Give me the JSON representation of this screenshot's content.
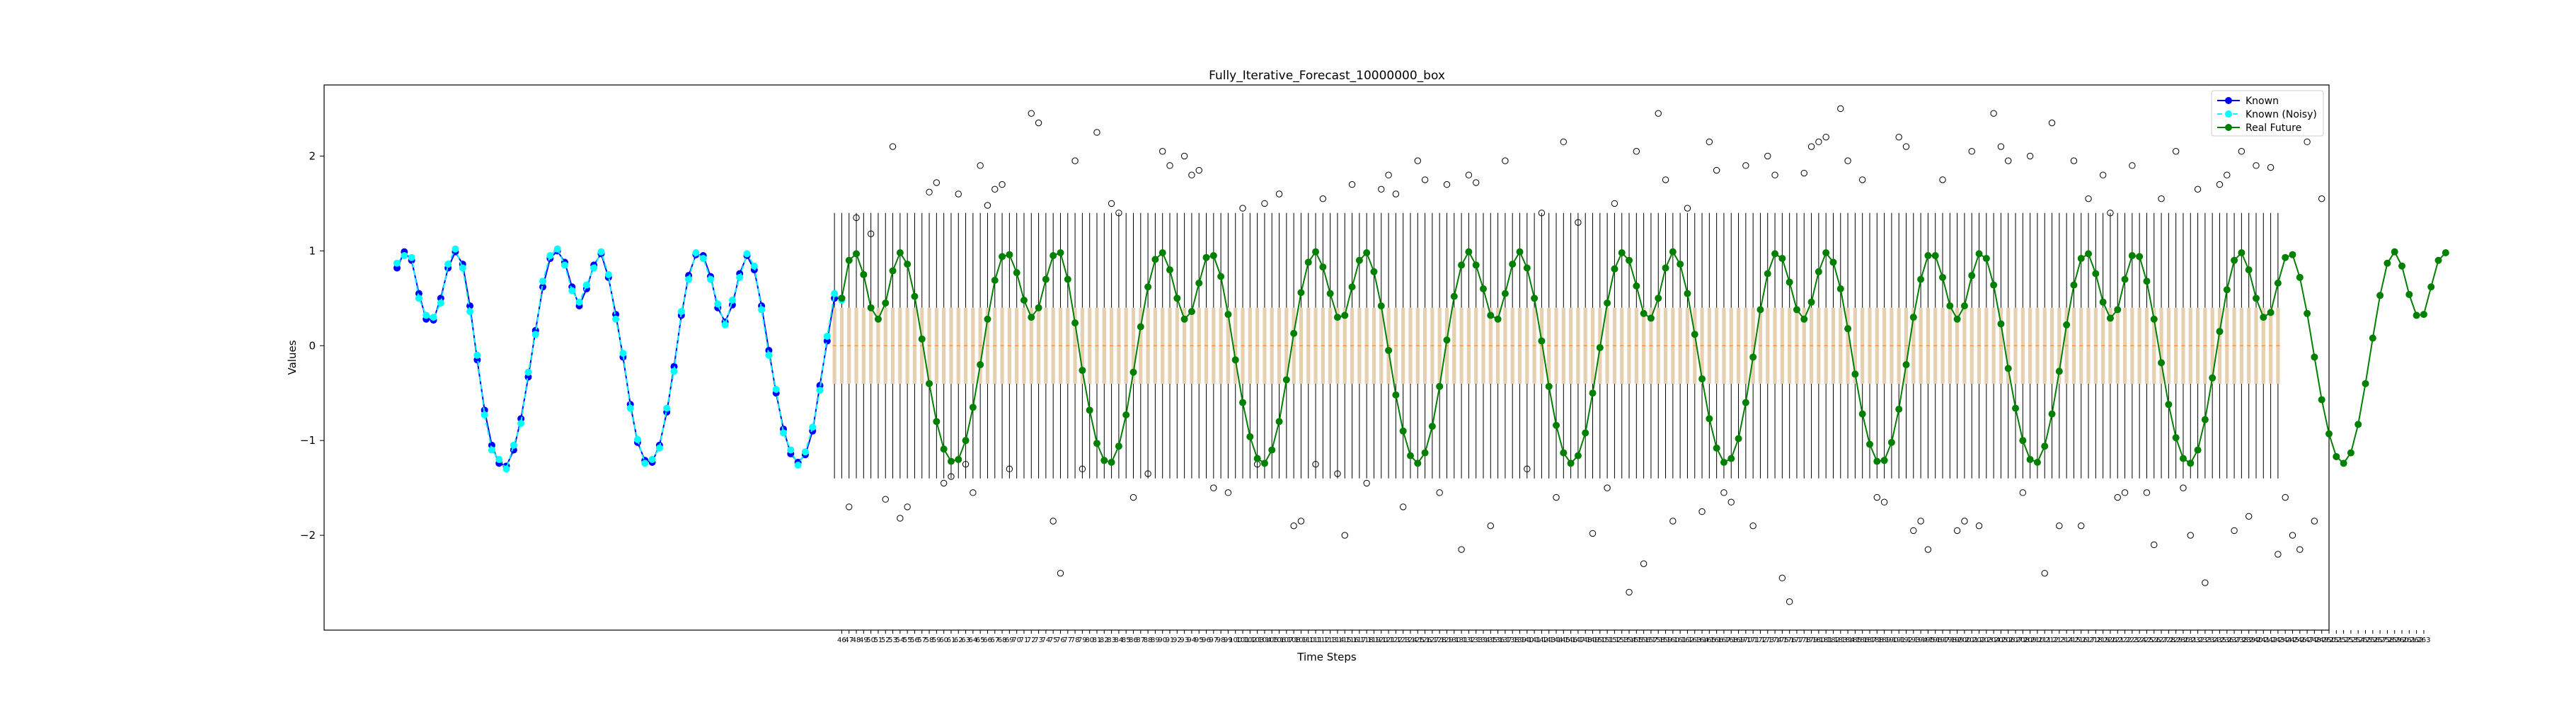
{
  "chart_data": {
    "type": "line",
    "title": "Fully_Iterative_Forecast_10000000_box",
    "xlabel": "Time Steps",
    "ylabel": "Values",
    "xlim": [
      -5,
      270
    ],
    "ylim": [
      -3.0,
      2.75
    ],
    "yticks": [
      -2,
      -1,
      0,
      1,
      2
    ],
    "ytick_labels": [
      "−2",
      "−1",
      "0",
      "1",
      "2"
    ],
    "xtick_start": 46,
    "xtick_end": 263,
    "legend_position": "top-right",
    "colors": {
      "known": "#0000ff",
      "known_noisy": "#00ffff",
      "real_future": "#008000",
      "box_face": "#e6d0b0",
      "median": "#ff7f0e",
      "whisker": "#000000"
    },
    "series": [
      {
        "name": "Known",
        "x_start": 5,
        "values": [
          0.82,
          0.99,
          0.9,
          0.55,
          0.28,
          0.27,
          0.5,
          0.82,
          0.99,
          0.86,
          0.42,
          -0.15,
          -0.68,
          -1.05,
          -1.24,
          -1.27,
          -1.1,
          -0.77,
          -0.33,
          0.16,
          0.62,
          0.92,
          1.0,
          0.88,
          0.62,
          0.42,
          0.6,
          0.85,
          0.97,
          0.72,
          0.33,
          -0.12,
          -0.62,
          -1.02,
          -1.21,
          -1.23,
          -1.05,
          -0.7,
          -0.22,
          0.32,
          0.74,
          0.96,
          0.95,
          0.73,
          0.4,
          0.25,
          0.43,
          0.76,
          0.95,
          0.8,
          0.42,
          -0.05,
          -0.5,
          -0.88,
          -1.14,
          -1.23,
          -1.15,
          -0.9,
          -0.42,
          0.05,
          0.5,
          0.5
        ]
      },
      {
        "name": "Known (Noisy)",
        "x_start": 5,
        "values": [
          0.87,
          0.95,
          0.93,
          0.5,
          0.32,
          0.3,
          0.45,
          0.86,
          1.02,
          0.82,
          0.36,
          -0.1,
          -0.73,
          -1.1,
          -1.2,
          -1.3,
          -1.05,
          -0.82,
          -0.28,
          0.12,
          0.68,
          0.95,
          1.02,
          0.85,
          0.58,
          0.46,
          0.64,
          0.82,
          0.99,
          0.75,
          0.28,
          -0.08,
          -0.66,
          -0.99,
          -1.24,
          -1.2,
          -1.08,
          -0.66,
          -0.27,
          0.36,
          0.7,
          0.98,
          0.92,
          0.7,
          0.44,
          0.22,
          0.48,
          0.72,
          0.97,
          0.84,
          0.38,
          -0.1,
          -0.46,
          -0.92,
          -1.1,
          -1.26,
          -1.12,
          -0.86,
          -0.47,
          0.1,
          0.55,
          0.48
        ]
      },
      {
        "name": "Real Future",
        "x_start": 66,
        "values": [
          0.5,
          0.9,
          0.97,
          0.75,
          0.4,
          0.28,
          0.45,
          0.79,
          0.98,
          0.86,
          0.52,
          0.07,
          -0.4,
          -0.8,
          -1.09,
          -1.22,
          -1.2,
          -1.0,
          -0.65,
          -0.2,
          0.28,
          0.69,
          0.94,
          0.96,
          0.77,
          0.48,
          0.3,
          0.4,
          0.7,
          0.95,
          0.98,
          0.7,
          0.24,
          -0.26,
          -0.68,
          -1.03,
          -1.21,
          -1.23,
          -1.06,
          -0.73,
          -0.28,
          0.2,
          0.62,
          0.91,
          0.98,
          0.8,
          0.5,
          0.28,
          0.36,
          0.66,
          0.93,
          0.95,
          0.73,
          0.33,
          -0.15,
          -0.6,
          -0.96,
          -1.19,
          -1.24,
          -1.1,
          -0.8,
          -0.36,
          0.13,
          0.56,
          0.88,
          0.99,
          0.83,
          0.55,
          0.3,
          0.32,
          0.62,
          0.9,
          0.98,
          0.78,
          0.42,
          -0.05,
          -0.52,
          -0.9,
          -1.16,
          -1.24,
          -1.13,
          -0.85,
          -0.43,
          0.06,
          0.52,
          0.85,
          0.99,
          0.85,
          0.6,
          0.32,
          0.28,
          0.55,
          0.86,
          0.99,
          0.82,
          0.5,
          0.05,
          -0.43,
          -0.84,
          -1.13,
          -1.24,
          -1.16,
          -0.92,
          -0.5,
          -0.02,
          0.45,
          0.81,
          0.98,
          0.9,
          0.63,
          0.34,
          0.29,
          0.5,
          0.82,
          0.99,
          0.86,
          0.55,
          0.12,
          -0.35,
          -0.77,
          -1.08,
          -1.23,
          -1.19,
          -0.98,
          -0.6,
          -0.12,
          0.38,
          0.76,
          0.97,
          0.92,
          0.67,
          0.38,
          0.28,
          0.46,
          0.78,
          0.98,
          0.88,
          0.6,
          0.18,
          -0.3,
          -0.72,
          -1.04,
          -1.22,
          -1.21,
          -1.02,
          -0.67,
          -0.2,
          0.3,
          0.7,
          0.95,
          0.95,
          0.72,
          0.42,
          0.28,
          0.42,
          0.74,
          0.97,
          0.92,
          0.64,
          0.23,
          -0.24,
          -0.66,
          -1.0,
          -1.2,
          -1.23,
          -1.06,
          -0.72,
          -0.27,
          0.22,
          0.64,
          0.92,
          0.97,
          0.76,
          0.46,
          0.29,
          0.38,
          0.7,
          0.95,
          0.94,
          0.68,
          0.28,
          -0.18,
          -0.62,
          -0.97,
          -1.19,
          -1.24,
          -1.1,
          -0.78,
          -0.34,
          0.15,
          0.59,
          0.9,
          0.98,
          0.8,
          0.5,
          0.3,
          0.35,
          0.66,
          0.93,
          0.96,
          0.72,
          0.34,
          -0.12,
          -0.57,
          -0.93,
          -1.17,
          -1.24,
          -1.13,
          -0.83,
          -0.4,
          0.08,
          0.53,
          0.87,
          0.99,
          0.84,
          0.54,
          0.32,
          0.33,
          0.62,
          0.9,
          0.98
        ]
      }
    ],
    "boxes": {
      "x_start": 65,
      "count": 199,
      "q1": -0.4,
      "q3": 0.4,
      "whisker_low": -1.4,
      "whisker_high": 1.4,
      "median": 0.0
    },
    "outliers": [
      [
        67,
        -1.7
      ],
      [
        68,
        1.35
      ],
      [
        70,
        1.18
      ],
      [
        72,
        -1.62
      ],
      [
        73,
        2.1
      ],
      [
        74,
        -1.82
      ],
      [
        75,
        -1.7
      ],
      [
        78,
        1.62
      ],
      [
        79,
        1.72
      ],
      [
        80,
        -1.45
      ],
      [
        81,
        -1.38
      ],
      [
        82,
        1.6
      ],
      [
        83,
        -1.25
      ],
      [
        84,
        -1.55
      ],
      [
        85,
        1.9
      ],
      [
        86,
        1.48
      ],
      [
        87,
        1.65
      ],
      [
        88,
        1.7
      ],
      [
        89,
        -1.3
      ],
      [
        92,
        2.45
      ],
      [
        93,
        2.35
      ],
      [
        95,
        -1.85
      ],
      [
        96,
        -2.4
      ],
      [
        98,
        1.95
      ],
      [
        99,
        -1.3
      ],
      [
        101,
        2.25
      ],
      [
        103,
        1.5
      ],
      [
        104,
        1.4
      ],
      [
        106,
        -1.6
      ],
      [
        108,
        -1.35
      ],
      [
        110,
        2.05
      ],
      [
        111,
        1.9
      ],
      [
        113,
        2.0
      ],
      [
        114,
        1.8
      ],
      [
        115,
        1.85
      ],
      [
        117,
        -1.5
      ],
      [
        119,
        -1.55
      ],
      [
        121,
        1.45
      ],
      [
        123,
        -1.25
      ],
      [
        124,
        1.5
      ],
      [
        126,
        1.6
      ],
      [
        128,
        -1.9
      ],
      [
        129,
        -1.85
      ],
      [
        131,
        -1.25
      ],
      [
        132,
        1.55
      ],
      [
        134,
        -1.35
      ],
      [
        135,
        -2.0
      ],
      [
        136,
        1.7
      ],
      [
        138,
        -1.45
      ],
      [
        140,
        1.65
      ],
      [
        141,
        1.8
      ],
      [
        142,
        1.6
      ],
      [
        143,
        -1.7
      ],
      [
        145,
        1.95
      ],
      [
        146,
        1.75
      ],
      [
        148,
        -1.55
      ],
      [
        149,
        1.7
      ],
      [
        151,
        -2.15
      ],
      [
        152,
        1.8
      ],
      [
        153,
        1.72
      ],
      [
        155,
        -1.9
      ],
      [
        157,
        1.95
      ],
      [
        160,
        -1.3
      ],
      [
        162,
        1.4
      ],
      [
        164,
        -1.6
      ],
      [
        165,
        2.15
      ],
      [
        167,
        1.3
      ],
      [
        169,
        -1.98
      ],
      [
        171,
        -1.5
      ],
      [
        172,
        1.5
      ],
      [
        174,
        -2.6
      ],
      [
        175,
        2.05
      ],
      [
        176,
        -2.3
      ],
      [
        178,
        2.45
      ],
      [
        179,
        1.75
      ],
      [
        180,
        -1.85
      ],
      [
        182,
        1.45
      ],
      [
        184,
        -1.75
      ],
      [
        185,
        2.15
      ],
      [
        186,
        1.85
      ],
      [
        187,
        -1.55
      ],
      [
        188,
        -1.65
      ],
      [
        190,
        1.9
      ],
      [
        191,
        -1.9
      ],
      [
        193,
        2.0
      ],
      [
        194,
        1.8
      ],
      [
        195,
        -2.45
      ],
      [
        196,
        -2.7
      ],
      [
        198,
        1.82
      ],
      [
        199,
        2.1
      ],
      [
        200,
        2.15
      ],
      [
        201,
        2.2
      ],
      [
        203,
        2.5
      ],
      [
        204,
        1.95
      ],
      [
        206,
        1.75
      ],
      [
        208,
        -1.6
      ],
      [
        209,
        -1.65
      ],
      [
        211,
        2.2
      ],
      [
        212,
        2.1
      ],
      [
        213,
        -1.95
      ],
      [
        214,
        -1.85
      ],
      [
        215,
        -2.15
      ],
      [
        217,
        1.75
      ],
      [
        219,
        -1.95
      ],
      [
        220,
        -1.85
      ],
      [
        221,
        2.05
      ],
      [
        222,
        -1.9
      ],
      [
        224,
        2.45
      ],
      [
        225,
        2.1
      ],
      [
        226,
        1.95
      ],
      [
        228,
        -1.55
      ],
      [
        229,
        2.0
      ],
      [
        231,
        -2.4
      ],
      [
        232,
        2.35
      ],
      [
        233,
        -1.9
      ],
      [
        235,
        1.95
      ],
      [
        236,
        -1.9
      ],
      [
        237,
        1.55
      ],
      [
        239,
        1.8
      ],
      [
        240,
        1.4
      ],
      [
        241,
        -1.6
      ],
      [
        242,
        -1.55
      ],
      [
        243,
        1.9
      ],
      [
        245,
        -1.55
      ],
      [
        246,
        -2.1
      ],
      [
        247,
        1.55
      ],
      [
        249,
        2.05
      ],
      [
        250,
        -1.5
      ],
      [
        251,
        -2.0
      ],
      [
        252,
        1.65
      ],
      [
        253,
        -2.5
      ],
      [
        255,
        1.7
      ],
      [
        256,
        1.8
      ],
      [
        257,
        -1.95
      ],
      [
        258,
        2.05
      ],
      [
        259,
        -1.8
      ],
      [
        260,
        1.9
      ],
      [
        262,
        1.88
      ],
      [
        263,
        -2.2
      ],
      [
        264,
        -1.6
      ],
      [
        265,
        -2.0
      ],
      [
        266,
        -2.15
      ],
      [
        267,
        2.15
      ],
      [
        268,
        -1.85
      ],
      [
        269,
        1.55
      ]
    ],
    "legend": [
      {
        "label": "Known",
        "color": "#0000ff"
      },
      {
        "label": "Known (Noisy)",
        "color": "#00ffff"
      },
      {
        "label": "Real Future",
        "color": "#008000"
      }
    ]
  }
}
